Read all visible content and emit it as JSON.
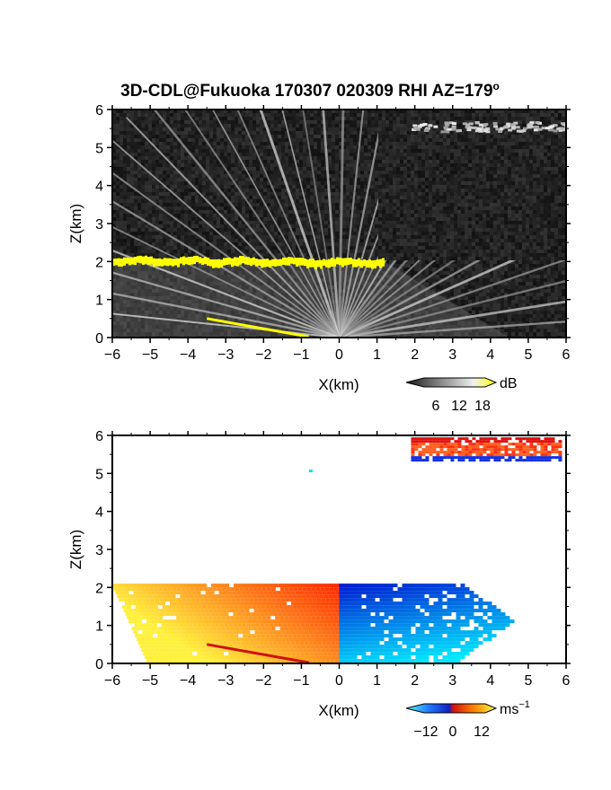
{
  "figure": {
    "title": "3D-CDL@Fukuoka 170307 020309 RHI AZ=179",
    "title_superscript": "o"
  },
  "chart_data": [
    {
      "type": "heatmap",
      "name": "reflectivity-rhi",
      "xlabel": "X(km)",
      "ylabel": "Z(km)",
      "xlim": [
        -6,
        6
      ],
      "ylim": [
        0,
        6
      ],
      "xticks": [
        "-6",
        "-5",
        "-4",
        "-3",
        "-2",
        "-1",
        "0",
        "1",
        "2",
        "3",
        "4",
        "5",
        "6"
      ],
      "yticks": [
        "0",
        "1",
        "2",
        "3",
        "4",
        "5",
        "6"
      ],
      "background": "noise-gray",
      "features": [
        {
          "kind": "fan-returns",
          "origin": [
            0,
            0
          ],
          "radius_km": 4.5,
          "top_km": 2.0
        },
        {
          "kind": "yellow-layer",
          "x": [
            -6,
            1.2
          ],
          "z": [
            2.0,
            1.95
          ]
        },
        {
          "kind": "yellow-ground",
          "x": [
            -3.5,
            -0.8
          ],
          "z": [
            0.5,
            0.02
          ]
        },
        {
          "kind": "bright-cloud",
          "x": [
            1.9,
            6.0
          ],
          "z": [
            5.45,
            5.7
          ]
        }
      ],
      "colorbar": {
        "unit": "dB",
        "ticks": [
          "6",
          "12",
          "18"
        ],
        "range": [
          0,
          21
        ],
        "colors": [
          "#1a1a1a",
          "#ffffff",
          "#ffff00"
        ]
      }
    },
    {
      "type": "heatmap",
      "name": "doppler-velocity-rhi",
      "xlabel": "X(km)",
      "ylabel": "Z(km)",
      "xlim": [
        -6,
        6
      ],
      "ylim": [
        0,
        6
      ],
      "xticks": [
        "-6",
        "-5",
        "-4",
        "-3",
        "-2",
        "-1",
        "0",
        "1",
        "2",
        "3",
        "4",
        "5",
        "6"
      ],
      "yticks": [
        "0",
        "1",
        "2",
        "3",
        "4",
        "5",
        "6"
      ],
      "background": "white",
      "features": [
        {
          "kind": "warm-wedge",
          "x": [
            -6,
            0
          ],
          "z_top": 2.1,
          "values": "positive"
        },
        {
          "kind": "cool-wedge",
          "x": [
            0,
            4.6
          ],
          "z_top": 2.1,
          "values": "negative"
        },
        {
          "kind": "cloud-band",
          "x": [
            1.9,
            5.8
          ],
          "z": [
            5.35,
            5.95
          ]
        },
        {
          "kind": "isolated-pixel",
          "x": -0.8,
          "z": 5.1
        }
      ],
      "colorbar": {
        "unit": "ms",
        "unit_superscript": "−1",
        "ticks": [
          "−12",
          "0",
          "12"
        ],
        "range": [
          -15,
          15
        ]
      }
    }
  ]
}
